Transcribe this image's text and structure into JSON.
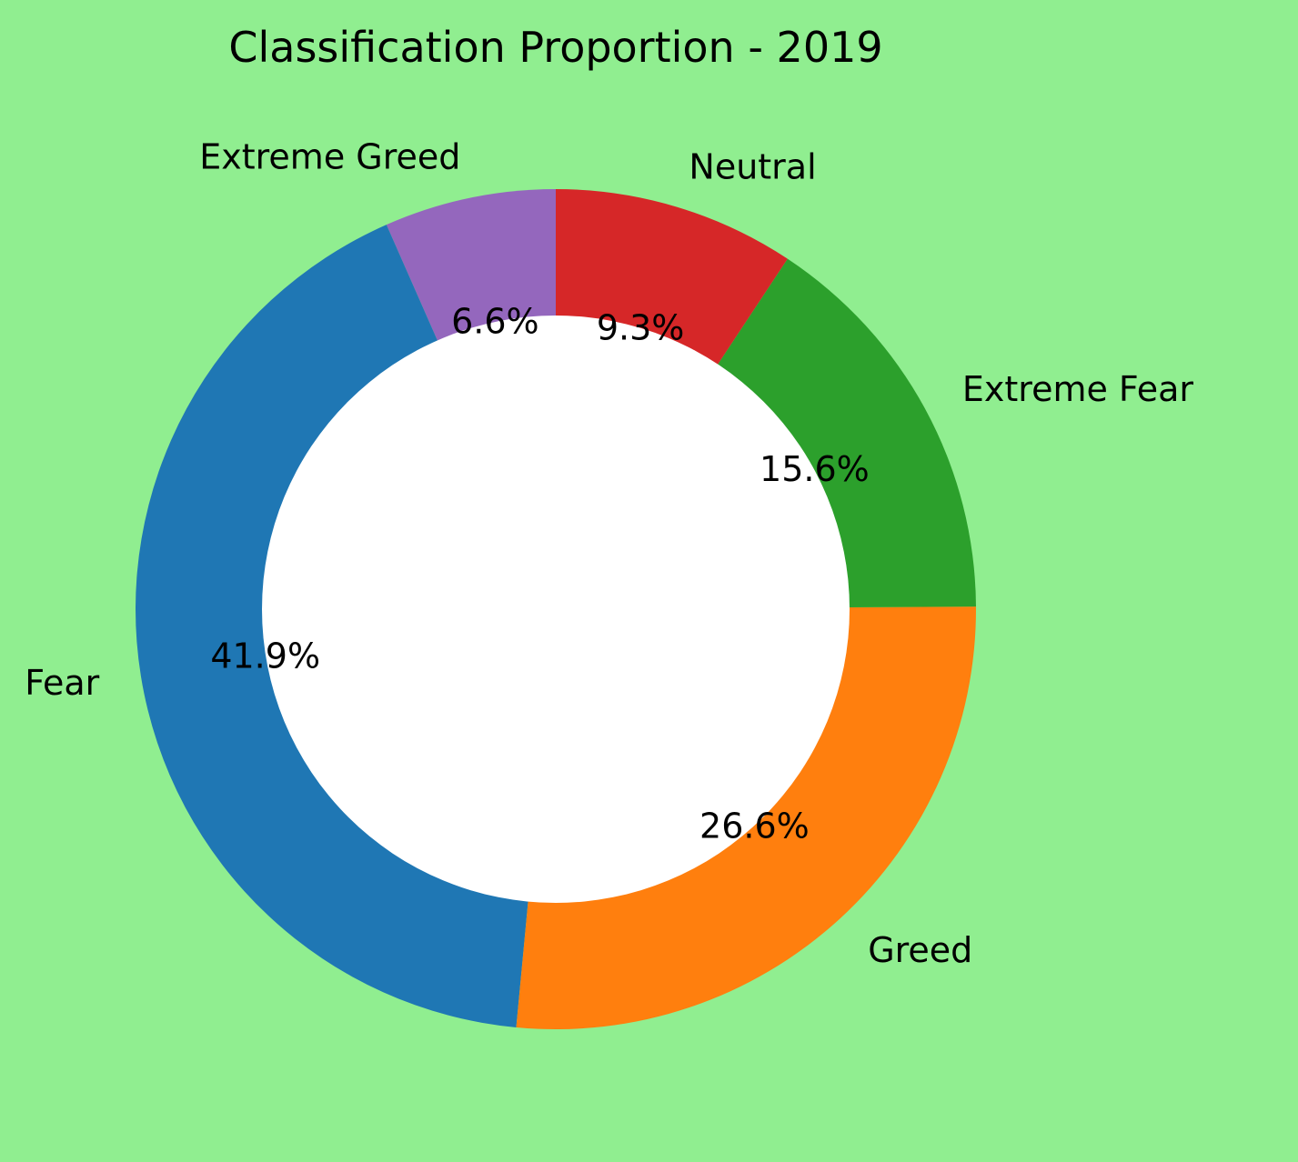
{
  "chart_data": {
    "type": "pie",
    "style": "donut",
    "title": "Classification Proportion - 2019",
    "start": "top",
    "direction": "counterclockwise",
    "background_color": "#90ee90",
    "center_hole_color": "#ffffff",
    "slices": [
      {
        "label": "Extreme Greed",
        "pct": "6.6%",
        "value": 6.6,
        "color": "#9467bd"
      },
      {
        "label": "Fear",
        "pct": "41.9%",
        "value": 41.9,
        "color": "#1f77b4"
      },
      {
        "label": "Greed",
        "pct": "26.6%",
        "value": 26.6,
        "color": "#ff7f0e"
      },
      {
        "label": "Extreme Fear",
        "pct": "15.6%",
        "value": 15.6,
        "color": "#2ca02c"
      },
      {
        "label": "Neutral",
        "pct": "9.3%",
        "value": 9.3,
        "color": "#d62728"
      }
    ]
  }
}
